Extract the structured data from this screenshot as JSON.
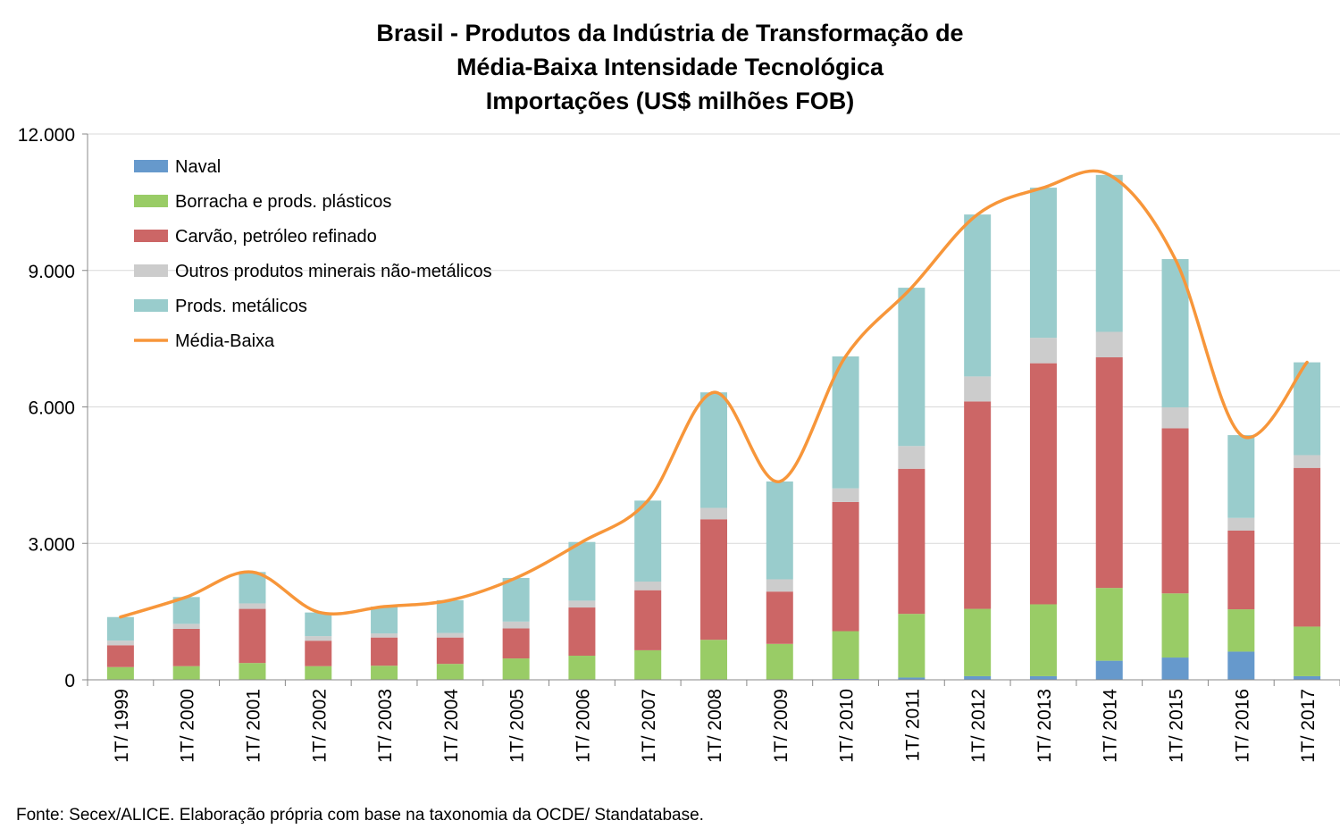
{
  "chart_data": {
    "type": "bar",
    "stacked": true,
    "title_lines": [
      "Brasil - Produtos da Indústria de Transformação de",
      "Média-Baixa Intensidade Tecnológica",
      "Importações (US$ milhões FOB)"
    ],
    "source": "Fonte: Secex/ALICE. Elaboração própria com base na taxonomia da OCDE/ Standatabase.",
    "categories": [
      "1T/ 1999",
      "1T/ 2000",
      "1T/ 2001",
      "1T/ 2002",
      "1T/ 2003",
      "1T/ 2004",
      "1T/ 2005",
      "1T/ 2006",
      "1T/ 2007",
      "1T/ 2008",
      "1T/ 2009",
      "1T/ 2010",
      "1T/ 2011",
      "1T/ 2012",
      "1T/ 2013",
      "1T/ 2014",
      "1T/ 2015",
      "1T/ 2016",
      "1T/ 2017"
    ],
    "ylim": [
      0,
      12000
    ],
    "yticks": [
      0,
      3000,
      6000,
      9000,
      12000
    ],
    "ytick_labels": [
      "0",
      "3.000",
      "6.000",
      "9.000",
      "12.000"
    ],
    "grid": true,
    "legend_position": "top-left",
    "series": [
      {
        "name": "Naval",
        "color": "#6699cc",
        "values": [
          10,
          10,
          10,
          10,
          10,
          10,
          10,
          10,
          10,
          10,
          10,
          20,
          50,
          80,
          80,
          420,
          490,
          620,
          80
        ]
      },
      {
        "name": "Borracha e prods. plásticos",
        "color": "#99cc66",
        "values": [
          270,
          290,
          360,
          290,
          300,
          340,
          460,
          520,
          640,
          870,
          780,
          1050,
          1400,
          1480,
          1580,
          1600,
          1410,
          930,
          1090
        ]
      },
      {
        "name": "Carvão, petróleo refinado",
        "color": "#cc6666",
        "values": [
          480,
          820,
          1190,
          560,
          620,
          580,
          660,
          1060,
          1320,
          2650,
          1150,
          2840,
          3190,
          4560,
          5300,
          5070,
          3630,
          1730,
          3490
        ]
      },
      {
        "name": "Outros produtos minerais não-metálicos",
        "color": "#cccccc",
        "values": [
          100,
          110,
          120,
          100,
          90,
          100,
          150,
          150,
          190,
          250,
          270,
          300,
          500,
          550,
          560,
          560,
          460,
          280,
          280
        ]
      },
      {
        "name": "Prods. metálicos",
        "color": "#99cccc",
        "values": [
          520,
          590,
          690,
          520,
          590,
          720,
          960,
          1290,
          1780,
          2540,
          2150,
          2900,
          3480,
          3560,
          3300,
          3450,
          3260,
          1820,
          2040
        ]
      }
    ],
    "line_series": {
      "name": "Média-Baixa",
      "color": "#f7963a",
      "values": [
        1380,
        1820,
        2370,
        1490,
        1610,
        1750,
        2240,
        3030,
        3940,
        6320,
        4360,
        7110,
        8620,
        10230,
        10820,
        11100,
        9250,
        5380,
        6980
      ]
    }
  }
}
